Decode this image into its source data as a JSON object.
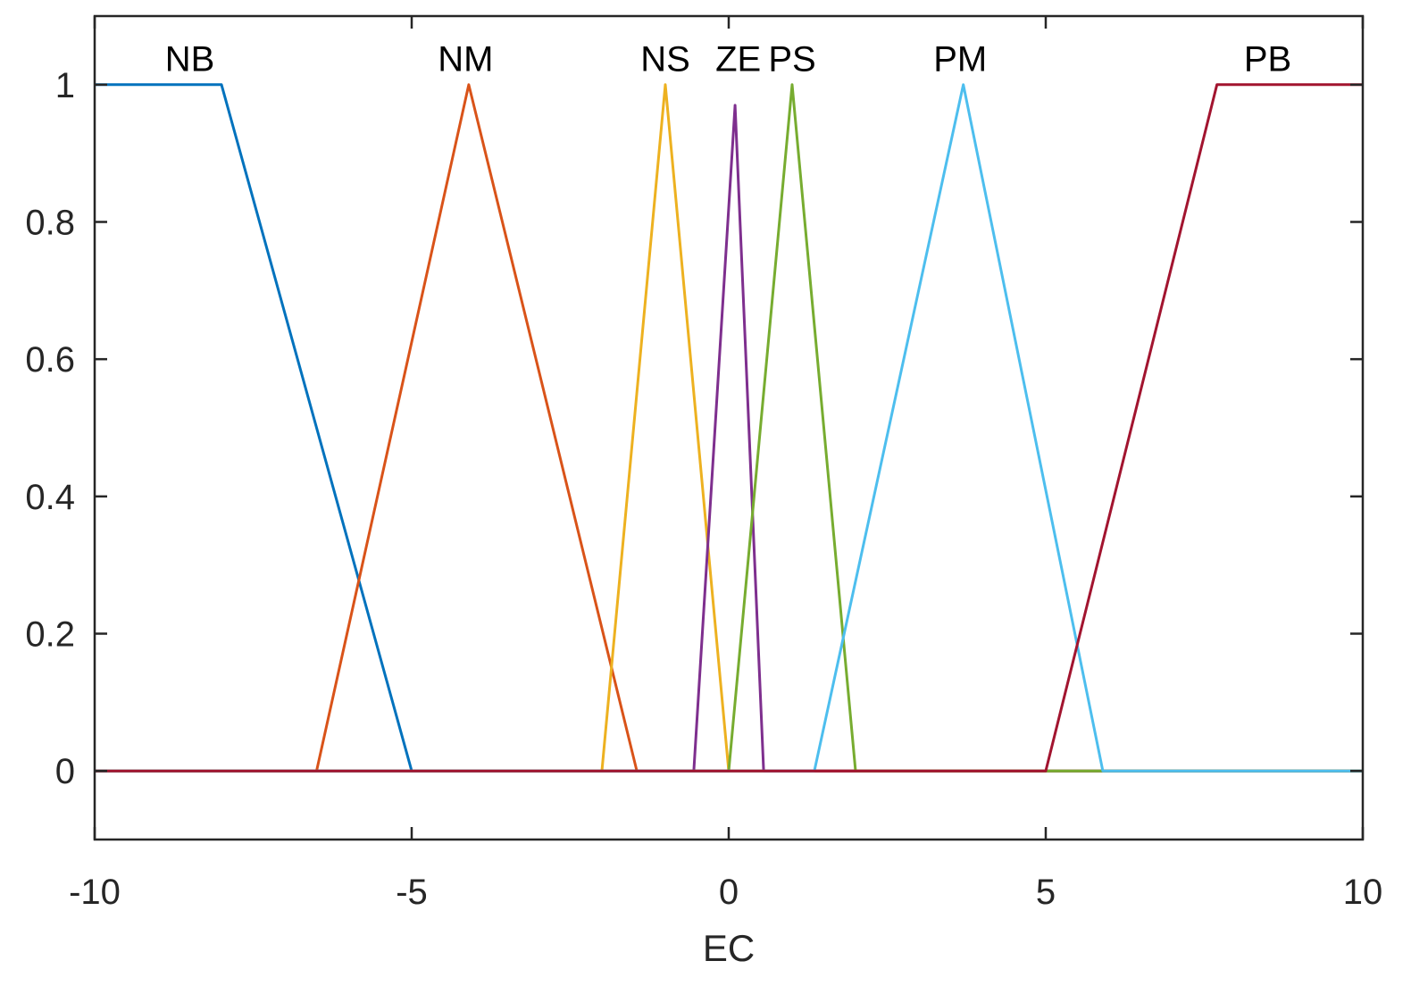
{
  "chart_data": {
    "type": "line",
    "title": "",
    "xlabel": "EC",
    "ylabel": "",
    "xlim": [
      -10,
      10
    ],
    "ylim": [
      -0.1,
      1.1
    ],
    "grid": false,
    "xticks": [
      -10,
      -5,
      0,
      5,
      10
    ],
    "xtick_labels": [
      "-10",
      "-5",
      "0",
      "5",
      "10"
    ],
    "yticks": [
      0,
      0.2,
      0.4,
      0.6,
      0.8,
      1
    ],
    "ytick_labels": [
      "0",
      "0.2",
      "0.4",
      "0.6",
      "0.8",
      "1"
    ],
    "series": [
      {
        "name": "NB",
        "color": "#0072BD",
        "label_x": -8.5,
        "label_y": 1.02,
        "points": [
          [
            -10,
            1
          ],
          [
            -8,
            1
          ],
          [
            -5,
            0
          ],
          [
            10,
            0
          ]
        ]
      },
      {
        "name": "NM",
        "color": "#D95319",
        "label_x": -4.15,
        "label_y": 1.02,
        "points": [
          [
            -10,
            0
          ],
          [
            -6.5,
            0
          ],
          [
            -4.1,
            1
          ],
          [
            -1.45,
            0
          ],
          [
            10,
            0
          ]
        ]
      },
      {
        "name": "NS",
        "color": "#EDB120",
        "label_x": -1.0,
        "label_y": 1.02,
        "points": [
          [
            -10,
            0
          ],
          [
            -2.0,
            0
          ],
          [
            -1.0,
            1
          ],
          [
            0.0,
            0
          ],
          [
            10,
            0
          ]
        ]
      },
      {
        "name": "ZE",
        "color": "#7E2F8E",
        "label_x": 0.15,
        "label_y": 1.02,
        "points": [
          [
            -10,
            0
          ],
          [
            -0.55,
            0
          ],
          [
            0.1,
            0.97
          ],
          [
            0.55,
            0
          ],
          [
            10,
            0
          ]
        ]
      },
      {
        "name": "PS",
        "color": "#77AC30",
        "label_x": 1.0,
        "label_y": 1.02,
        "points": [
          [
            -10,
            0
          ],
          [
            0.0,
            0
          ],
          [
            1.0,
            1
          ],
          [
            2.0,
            0
          ],
          [
            10,
            0
          ]
        ]
      },
      {
        "name": "PM",
        "color": "#4DBEEE",
        "label_x": 3.65,
        "label_y": 1.02,
        "points": [
          [
            -10,
            0
          ],
          [
            1.35,
            0
          ],
          [
            3.7,
            1
          ],
          [
            5.9,
            0
          ],
          [
            10,
            0
          ]
        ]
      },
      {
        "name": "PB",
        "color": "#A2142F",
        "label_x": 8.5,
        "label_y": 1.02,
        "points": [
          [
            -10,
            0
          ],
          [
            5.0,
            0
          ],
          [
            7.7,
            1
          ],
          [
            10,
            1
          ]
        ]
      }
    ]
  }
}
